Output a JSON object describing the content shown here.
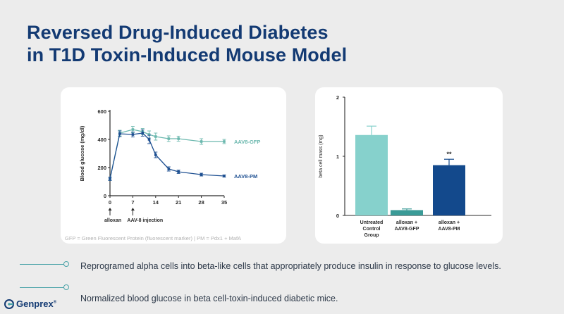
{
  "slide": {
    "title_line1": "Reversed Drug-Induced Diabetes",
    "title_line2": "in T1D Toxin-Induced Mouse Model",
    "footnote": "GFP = Green Fluorescent Protein (fluorescent marker) | PM = Pdx1 + MafA",
    "bullets": [
      "Reprogramed alpha cells into beta-like cells that appropriately produce insulin in response to glucose levels.",
      "Normalized blood glucose in beta cell-toxin-induced diabetic mice."
    ],
    "logo_text": "Genprex",
    "logo_tm": "®"
  },
  "colors": {
    "title": "#133a73",
    "gfp": "#6bb8ae",
    "pm": "#1d4f91",
    "untreated": "#86d1cc",
    "alloxan_gfp": "#3a9b97",
    "alloxan_pm": "#13498c",
    "accent": "#4aa3a8"
  },
  "chart_data": [
    {
      "type": "line",
      "title": "",
      "xlabel": "",
      "ylabel": "Blood glucose (mg/dl)",
      "xlim": [
        0,
        35
      ],
      "ylim": [
        0,
        600
      ],
      "xticks": [
        0,
        7,
        14,
        21,
        28,
        35
      ],
      "yticks": [
        0,
        200,
        400,
        600
      ],
      "series": [
        {
          "name": "AAV8-GFP",
          "x": [
            0,
            3,
            7,
            10,
            12,
            14,
            18,
            21,
            28,
            35
          ],
          "y": [
            120,
            445,
            470,
            455,
            435,
            420,
            405,
            405,
            385,
            385
          ],
          "err": [
            12,
            20,
            22,
            22,
            25,
            25,
            20,
            18,
            20,
            15
          ]
        },
        {
          "name": "AAV8-PM",
          "x": [
            0,
            3,
            7,
            10,
            12,
            14,
            18,
            21,
            28,
            35
          ],
          "y": [
            120,
            440,
            435,
            445,
            400,
            290,
            190,
            170,
            150,
            140
          ],
          "err": [
            12,
            20,
            18,
            22,
            30,
            20,
            15,
            12,
            10,
            8
          ]
        }
      ],
      "annotations": [
        {
          "label": "alloxan",
          "x": 0
        },
        {
          "label": "AAV-8 injection",
          "x": 7
        }
      ]
    },
    {
      "type": "bar",
      "title": "",
      "xlabel": "",
      "ylabel": "beta cell mass (mg)",
      "ylim": [
        0,
        2
      ],
      "yticks": [
        0,
        1,
        2
      ],
      "categories": [
        "Untreated Control Group",
        "alloxan + AAV8-GFP",
        "alloxan + AAV8-PM"
      ],
      "category_lines": [
        [
          "Untreated",
          "Control",
          "Group"
        ],
        [
          "alloxan +",
          "AAV8-GFP"
        ],
        [
          "alloxan +",
          "AAV8-PM"
        ]
      ],
      "values": [
        1.36,
        0.09,
        0.85
      ],
      "errors": [
        0.15,
        0.02,
        0.1
      ],
      "annotations": [
        {
          "category": "alloxan + AAV8-PM",
          "label": "**"
        }
      ]
    }
  ]
}
